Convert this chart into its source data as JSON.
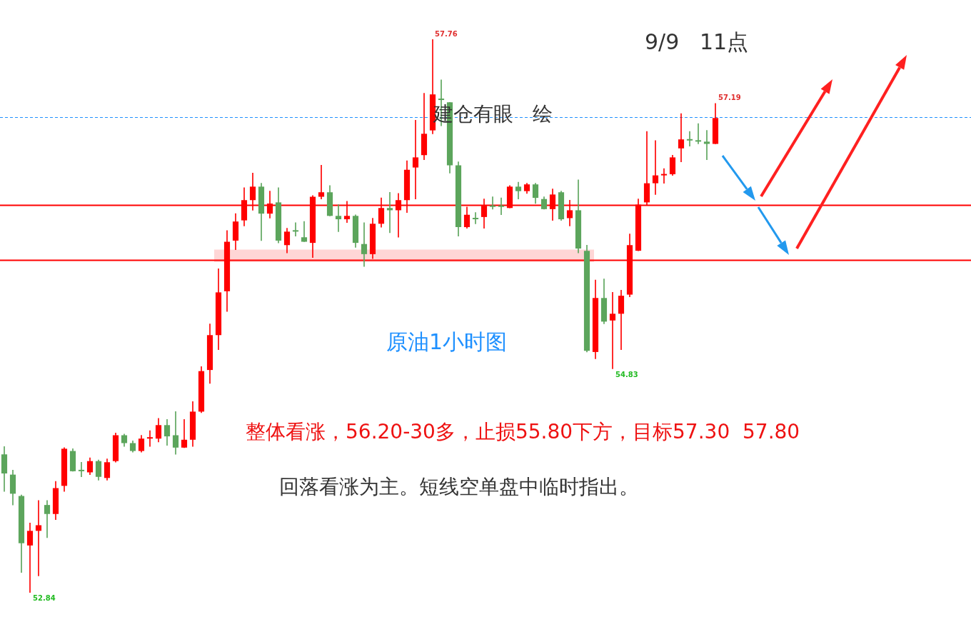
{
  "chart_data": {
    "type": "candlestick",
    "title": "9/9   11点",
    "annotations": [
      "建仓有眼   绘",
      "原油1小时图",
      "整体看涨，56.20-30多，止损55.80下方，目标57.30  57.80",
      "回落看涨为主。短线空单盘中临时指出。",
      "57.76",
      "57.19",
      "54.83",
      "52.84"
    ],
    "categories": [
      null,
      null,
      null,
      null,
      null,
      null,
      null,
      null,
      null,
      null,
      null,
      null,
      null,
      null,
      null,
      null,
      null,
      null,
      null,
      null,
      null,
      null,
      null,
      null,
      null,
      null,
      null,
      null,
      null,
      null,
      null,
      null,
      null,
      null,
      null,
      null,
      null,
      null,
      null,
      null,
      null,
      null,
      null,
      null,
      null,
      null,
      null,
      null,
      null,
      null,
      null,
      null,
      null,
      null,
      null,
      null,
      null,
      null,
      null,
      null,
      null,
      null,
      null,
      null,
      null,
      null,
      null,
      null,
      null,
      null,
      null,
      null,
      null,
      null,
      null,
      null,
      null,
      null,
      null,
      null,
      null,
      null,
      null,
      null
    ],
    "ohlc": [
      [
        54.07,
        54.14,
        53.74,
        53.9
      ],
      [
        53.89,
        53.93,
        53.62,
        53.72
      ],
      [
        53.7,
        53.71,
        53.02,
        53.28
      ],
      [
        53.26,
        53.46,
        52.84,
        53.39
      ],
      [
        53.39,
        53.66,
        52.99,
        53.44
      ],
      [
        53.62,
        53.66,
        53.33,
        53.54
      ],
      [
        53.54,
        53.83,
        53.49,
        53.77
      ],
      [
        53.79,
        54.13,
        53.74,
        54.12
      ],
      [
        54.1,
        54.12,
        53.92,
        53.92
      ],
      [
        53.93,
        54.0,
        53.87,
        53.92
      ],
      [
        53.91,
        54.04,
        53.89,
        54.01
      ],
      [
        54.01,
        54.02,
        53.84,
        53.87
      ],
      [
        53.86,
        54.03,
        53.84,
        54.0
      ],
      [
        54.01,
        54.26,
        54.0,
        54.24
      ],
      [
        54.24,
        54.25,
        54.14,
        54.17
      ],
      [
        54.17,
        54.19,
        54.09,
        54.1
      ],
      [
        54.1,
        54.24,
        54.09,
        54.21
      ],
      [
        54.21,
        54.28,
        54.14,
        54.21
      ],
      [
        54.21,
        54.39,
        54.18,
        54.33
      ],
      [
        54.33,
        54.38,
        54.15,
        54.23
      ],
      [
        54.24,
        54.45,
        54.07,
        54.13
      ],
      [
        54.13,
        54.38,
        54.13,
        54.2
      ],
      [
        54.2,
        54.54,
        54.14,
        54.45
      ],
      [
        54.45,
        54.85,
        54.44,
        54.81
      ],
      [
        54.82,
        55.23,
        54.7,
        55.13
      ],
      [
        55.13,
        55.72,
        55.0,
        55.51
      ],
      [
        55.52,
        56.06,
        55.34,
        55.96
      ],
      [
        55.97,
        56.21,
        55.89,
        56.14
      ],
      [
        56.15,
        56.44,
        56.1,
        56.33
      ],
      [
        56.33,
        56.57,
        56.24,
        56.45
      ],
      [
        56.45,
        56.48,
        55.97,
        56.21
      ],
      [
        56.21,
        56.41,
        56.17,
        56.3
      ],
      [
        56.31,
        56.44,
        55.95,
        55.97
      ],
      [
        55.93,
        56.08,
        55.86,
        56.05
      ],
      [
        56.06,
        56.13,
        56.01,
        56.05
      ],
      [
        56.0,
        56.14,
        55.96,
        55.96
      ],
      [
        55.95,
        56.37,
        55.82,
        56.36
      ],
      [
        56.36,
        56.64,
        56.34,
        56.4
      ],
      [
        56.4,
        56.46,
        56.19,
        56.19
      ],
      [
        56.19,
        56.29,
        56.05,
        56.16
      ],
      [
        56.16,
        56.32,
        56.13,
        56.19
      ],
      [
        56.19,
        56.2,
        55.91,
        55.95
      ],
      [
        55.94,
        56.13,
        55.74,
        55.85
      ],
      [
        55.85,
        56.17,
        55.81,
        56.12
      ],
      [
        56.12,
        56.35,
        56.09,
        56.26
      ],
      [
        56.26,
        56.4,
        56.04,
        56.24
      ],
      [
        56.24,
        56.39,
        56.0,
        56.33
      ],
      [
        56.33,
        56.68,
        56.22,
        56.6
      ],
      [
        56.62,
        57.04,
        56.34,
        56.71
      ],
      [
        56.73,
        57.28,
        56.69,
        56.92
      ],
      [
        56.95,
        57.76,
        56.92,
        57.27
      ],
      [
        57.23,
        57.4,
        56.99,
        57.22
      ],
      [
        57.2,
        57.2,
        56.57,
        56.64
      ],
      [
        56.64,
        56.67,
        56.01,
        56.09
      ],
      [
        56.09,
        56.27,
        56.08,
        56.2
      ],
      [
        56.17,
        56.22,
        56.12,
        56.16
      ],
      [
        56.18,
        56.34,
        56.08,
        56.28
      ],
      [
        56.28,
        56.36,
        56.25,
        56.27
      ],
      [
        56.28,
        56.35,
        56.2,
        56.27
      ],
      [
        56.26,
        56.46,
        56.26,
        56.45
      ],
      [
        56.45,
        56.49,
        56.34,
        56.41
      ],
      [
        56.41,
        56.48,
        56.39,
        56.47
      ],
      [
        56.47,
        56.48,
        56.3,
        56.35
      ],
      [
        56.34,
        56.36,
        56.25,
        56.25
      ],
      [
        56.25,
        56.43,
        56.15,
        56.38
      ],
      [
        56.4,
        56.41,
        56.15,
        56.16
      ],
      [
        56.17,
        56.33,
        56.1,
        56.24
      ],
      [
        56.24,
        56.51,
        55.86,
        55.9
      ],
      [
        55.88,
        55.93,
        54.98,
        54.99
      ],
      [
        54.98,
        55.62,
        54.92,
        55.46
      ],
      [
        55.46,
        55.63,
        55.23,
        55.25
      ],
      [
        55.26,
        55.51,
        54.83,
        55.32
      ],
      [
        55.32,
        55.53,
        55.0,
        55.48
      ],
      [
        55.49,
        56.03,
        55.47,
        55.93
      ],
      [
        55.88,
        56.34,
        55.88,
        56.29
      ],
      [
        56.31,
        56.94,
        56.29,
        56.48
      ],
      [
        56.48,
        56.86,
        56.38,
        56.55
      ],
      [
        56.55,
        56.61,
        56.48,
        56.55
      ],
      [
        56.56,
        56.73,
        56.55,
        56.71
      ],
      [
        56.79,
        57.1,
        56.67,
        56.87
      ],
      [
        56.87,
        56.94,
        56.81,
        56.86
      ],
      [
        56.86,
        57.01,
        56.83,
        56.85
      ],
      [
        56.85,
        56.95,
        56.69,
        56.83
      ],
      [
        56.83,
        57.19,
        56.83,
        57.06
      ]
    ],
    "colors": [
      "#5ca55c",
      "#5ca55c",
      "#5ca55c",
      "#ff0000",
      "#ff0000",
      "#5ca55c",
      "#ff0000",
      "#ff0000",
      "#5ca55c",
      "#5ca55c",
      "#ff0000",
      "#5ca55c",
      "#ff0000",
      "#ff0000",
      "#5ca55c",
      "#5ca55c",
      "#ff0000",
      "#ff0000",
      "#ff0000",
      "#5ca55c",
      "#5ca55c",
      "#ff0000",
      "#ff0000",
      "#ff0000",
      "#ff0000",
      "#ff0000",
      "#ff0000",
      "#ff0000",
      "#ff0000",
      "#ff0000",
      "#5ca55c",
      "#ff0000",
      "#5ca55c",
      "#ff0000",
      "#5ca55c",
      "#5ca55c",
      "#ff0000",
      "#ff0000",
      "#5ca55c",
      "#5ca55c",
      "#ff0000",
      "#5ca55c",
      "#5ca55c",
      "#ff0000",
      "#ff0000",
      "#5ca55c",
      "#ff0000",
      "#ff0000",
      "#ff0000",
      "#ff0000",
      "#ff0000",
      "#5ca55c",
      "#5ca55c",
      "#5ca55c",
      "#ff0000",
      "#5ca55c",
      "#ff0000",
      "#5ca55c",
      "#5ca55c",
      "#ff0000",
      "#5ca55c",
      "#ff0000",
      "#5ca55c",
      "#5ca55c",
      "#ff0000",
      "#5ca55c",
      "#ff0000",
      "#5ca55c",
      "#5ca55c",
      "#ff0000",
      "#5ca55c",
      "#ff0000",
      "#ff0000",
      "#ff0000",
      "#ff0000",
      "#ff0000",
      "#ff0000",
      "#ff0000",
      "#ff0000",
      "#ff0000",
      "#5ca55c",
      "#5ca55c",
      "#5ca55c",
      "#ff0000"
    ],
    "ref_lines": [
      {
        "axis": "y",
        "value": 56.29,
        "color": "#ff0000"
      },
      {
        "axis": "y",
        "value": 55.8,
        "color": "#ff0000"
      },
      {
        "axis": "y",
        "value": 57.07,
        "color": "#1e90ff",
        "line_style": "dashed"
      }
    ],
    "bands": [
      {
        "axis": "y",
        "from": 55.78,
        "to": 55.89,
        "color": "#ffd6d6"
      }
    ]
  }
}
